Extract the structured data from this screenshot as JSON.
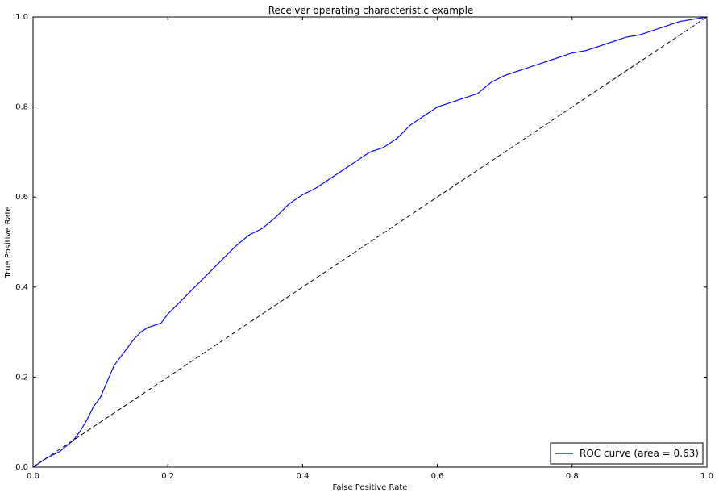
{
  "chart_data": {
    "type": "line",
    "title": "Receiver operating characteristic example",
    "xlabel": "False Positive Rate",
    "ylabel": "True Positive Rate",
    "xlim": [
      0.0,
      1.0
    ],
    "ylim": [
      0.0,
      1.0
    ],
    "xticks": [
      "0.0",
      "0.2",
      "0.4",
      "0.6",
      "0.8",
      "1.0"
    ],
    "yticks": [
      "0.0",
      "0.2",
      "0.4",
      "0.6",
      "0.8",
      "1.0"
    ],
    "grid": false,
    "legend_position": "lower-right",
    "series": [
      {
        "name": "ROC curve (area = 0.63)",
        "color": "#0000ff",
        "style": "solid",
        "x": [
          0.0,
          0.02,
          0.04,
          0.06,
          0.07,
          0.08,
          0.09,
          0.1,
          0.11,
          0.12,
          0.13,
          0.14,
          0.15,
          0.16,
          0.17,
          0.19,
          0.2,
          0.22,
          0.24,
          0.26,
          0.28,
          0.3,
          0.32,
          0.34,
          0.36,
          0.38,
          0.4,
          0.42,
          0.44,
          0.46,
          0.48,
          0.5,
          0.52,
          0.54,
          0.55,
          0.56,
          0.58,
          0.6,
          0.62,
          0.64,
          0.66,
          0.68,
          0.7,
          0.72,
          0.74,
          0.76,
          0.78,
          0.8,
          0.82,
          0.84,
          0.86,
          0.88,
          0.9,
          0.92,
          0.94,
          0.96,
          0.98,
          1.0
        ],
        "y": [
          0.0,
          0.02,
          0.035,
          0.06,
          0.08,
          0.105,
          0.135,
          0.155,
          0.19,
          0.225,
          0.245,
          0.265,
          0.285,
          0.3,
          0.31,
          0.32,
          0.34,
          0.37,
          0.4,
          0.43,
          0.46,
          0.49,
          0.515,
          0.53,
          0.555,
          0.585,
          0.605,
          0.62,
          0.64,
          0.66,
          0.68,
          0.7,
          0.71,
          0.73,
          0.745,
          0.76,
          0.78,
          0.8,
          0.81,
          0.82,
          0.83,
          0.855,
          0.87,
          0.88,
          0.89,
          0.9,
          0.91,
          0.92,
          0.925,
          0.935,
          0.945,
          0.955,
          0.96,
          0.97,
          0.98,
          0.99,
          0.995,
          1.0
        ]
      },
      {
        "color": "#000000",
        "style": "dashed",
        "x": [
          0.0,
          1.0
        ],
        "y": [
          0.0,
          1.0
        ]
      }
    ]
  }
}
